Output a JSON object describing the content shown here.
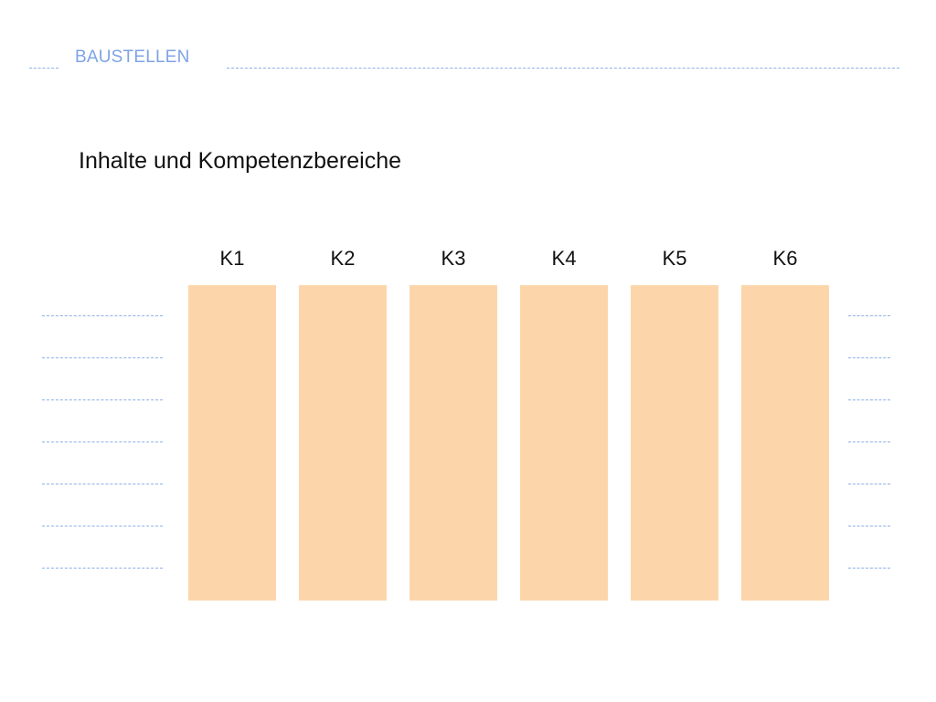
{
  "header": {
    "section_label": "BAUSTELLEN"
  },
  "heading": "Inhalte und Kompetenzbereiche",
  "columns": [
    {
      "label": "K1"
    },
    {
      "label": "K2"
    },
    {
      "label": "K3"
    },
    {
      "label": "K4"
    },
    {
      "label": "K5"
    },
    {
      "label": "K6"
    }
  ],
  "colors": {
    "accent": "#7ea3e6",
    "column_fill": "#fcd6aa",
    "text": "#111111"
  }
}
